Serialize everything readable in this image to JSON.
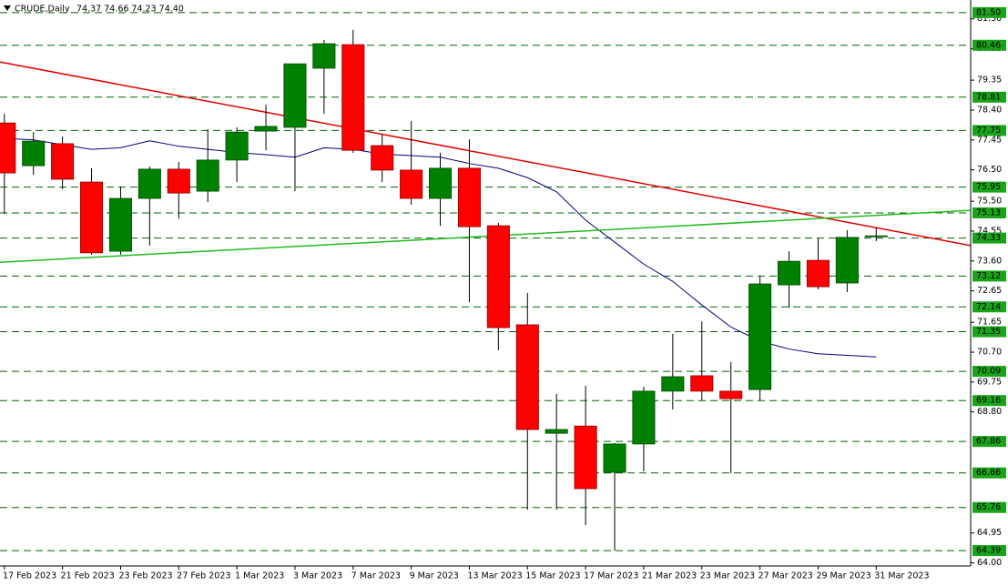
{
  "chart_data": {
    "type": "candlestick",
    "title": "CRUDE,Daily",
    "ohlc_text": "74.37 74.66 74.23 74.40",
    "categories": [
      "17 Feb 2023",
      null,
      "21 Feb 2023",
      null,
      "23 Feb 2023",
      null,
      "27 Feb 2023",
      null,
      "1 Mar 2023",
      null,
      "3 Mar 2023",
      null,
      "7 Mar 2023",
      null,
      "9 Mar 2023",
      null,
      "13 Mar 2023",
      null,
      "15 Mar 2023",
      null,
      "17 Mar 2023",
      null,
      "21 Mar 2023",
      null,
      "23 Mar 2023",
      null,
      "27 Mar 2023",
      null,
      "29 Mar 2023",
      null,
      "31 Mar 2023"
    ],
    "open": [
      77.99,
      76.63,
      77.33,
      76.11,
      73.91,
      75.59,
      76.52,
      75.82,
      76.81,
      77.73,
      77.85,
      79.73,
      80.48,
      77.27,
      76.49,
      75.59,
      76.55,
      74.72,
      71.57,
      68.12,
      68.35,
      66.88,
      67.78,
      69.46,
      69.95,
      69.46,
      69.51,
      72.84,
      73.62,
      72.9,
      74.37
    ],
    "high": [
      78.28,
      77.7,
      77.56,
      76.55,
      75.97,
      76.6,
      76.75,
      77.79,
      77.85,
      78.57,
      79.87,
      80.63,
      80.95,
      77.62,
      78.05,
      77.04,
      77.47,
      74.81,
      72.58,
      69.37,
      69.63,
      67.81,
      69.6,
      71.28,
      71.68,
      70.38,
      73.13,
      73.91,
      74.32,
      74.58,
      74.66
    ],
    "low": [
      75.1,
      76.34,
      75.88,
      73.8,
      73.8,
      74.09,
      74.95,
      75.47,
      76.11,
      77.12,
      75.82,
      78.28,
      77.04,
      76.11,
      75.39,
      74.72,
      72.29,
      70.76,
      65.69,
      65.69,
      65.2,
      64.39,
      66.91,
      68.88,
      69.17,
      66.85,
      69.17,
      72.12,
      72.7,
      72.61,
      74.23
    ],
    "close": [
      76.4,
      77.41,
      76.2,
      73.86,
      75.59,
      76.52,
      75.76,
      76.81,
      77.7,
      77.88,
      79.87,
      80.51,
      77.12,
      76.49,
      75.59,
      76.55,
      74.69,
      71.48,
      68.24,
      68.24,
      66.36,
      67.78,
      69.46,
      69.92,
      69.46,
      69.22,
      72.87,
      73.59,
      72.78,
      74.35,
      74.4
    ],
    "up_color": "#008000",
    "down_color": "#ff0000",
    "ma": {
      "color": "#000080",
      "values": [
        77.5,
        77.45,
        77.3,
        77.15,
        77.2,
        77.42,
        77.25,
        77.15,
        77.05,
        76.98,
        76.9,
        77.2,
        77.15,
        77.0,
        76.95,
        76.9,
        76.7,
        76.55,
        76.25,
        75.8,
        74.9,
        74.2,
        73.5,
        72.95,
        72.2,
        71.5,
        71.05,
        70.8,
        70.65,
        70.6,
        70.55
      ]
    },
    "trendlines": [
      {
        "color": "#e00000",
        "x": [
          -0.15,
          33.25
        ],
        "values": [
          79.93,
          74.09
        ]
      },
      {
        "color": "#22bb22",
        "x": [
          -0.15,
          33.25
        ],
        "values": [
          73.56,
          75.21
        ]
      }
    ],
    "levels": [
      {
        "value": 81.5,
        "label": "81.50"
      },
      {
        "value": 80.46,
        "label": "80.46"
      },
      {
        "value": 78.81,
        "label": "78.81"
      },
      {
        "value": 77.75,
        "label": "77.75"
      },
      {
        "value": 75.95,
        "label": "75.95"
      },
      {
        "value": 75.13,
        "label": "75.13"
      },
      {
        "value": 74.33,
        "label": "74.33"
      },
      {
        "value": 73.12,
        "label": "73.12"
      },
      {
        "value": 72.14,
        "label": "72.14"
      },
      {
        "value": 71.35,
        "label": "71.35"
      },
      {
        "value": 70.09,
        "label": "70.09"
      },
      {
        "value": 69.16,
        "label": "69.16"
      },
      {
        "value": 67.86,
        "label": "67.86"
      },
      {
        "value": 66.86,
        "label": "66.86"
      },
      {
        "value": 65.76,
        "label": "65.76"
      },
      {
        "value": 64.39,
        "label": "64.39"
      }
    ],
    "level_color": "#1aa31a",
    "xlim": [
      -0.15,
      33.25
    ],
    "ylim": [
      63.9,
      81.9
    ],
    "yticks": [
      {
        "value": 81.3,
        "label": "81.30"
      },
      {
        "value": 80.35,
        "label": "80.35"
      },
      {
        "value": 79.35,
        "label": "79.35"
      },
      {
        "value": 78.4,
        "label": "78.40"
      },
      {
        "value": 77.45,
        "label": "77.45"
      },
      {
        "value": 76.5,
        "label": "76.50"
      },
      {
        "value": 75.5,
        "label": "75.50"
      },
      {
        "value": 74.55,
        "label": "74.55"
      },
      {
        "value": 73.6,
        "label": "73.60"
      },
      {
        "value": 72.65,
        "label": "72.65"
      },
      {
        "value": 71.65,
        "label": "71.65"
      },
      {
        "value": 70.7,
        "label": "70.70"
      },
      {
        "value": 69.75,
        "label": "69.75"
      },
      {
        "value": 68.8,
        "label": "68.80"
      },
      {
        "value": 64.95,
        "label": "64.95"
      },
      {
        "value": 64.0,
        "label": "64.00"
      }
    ]
  }
}
